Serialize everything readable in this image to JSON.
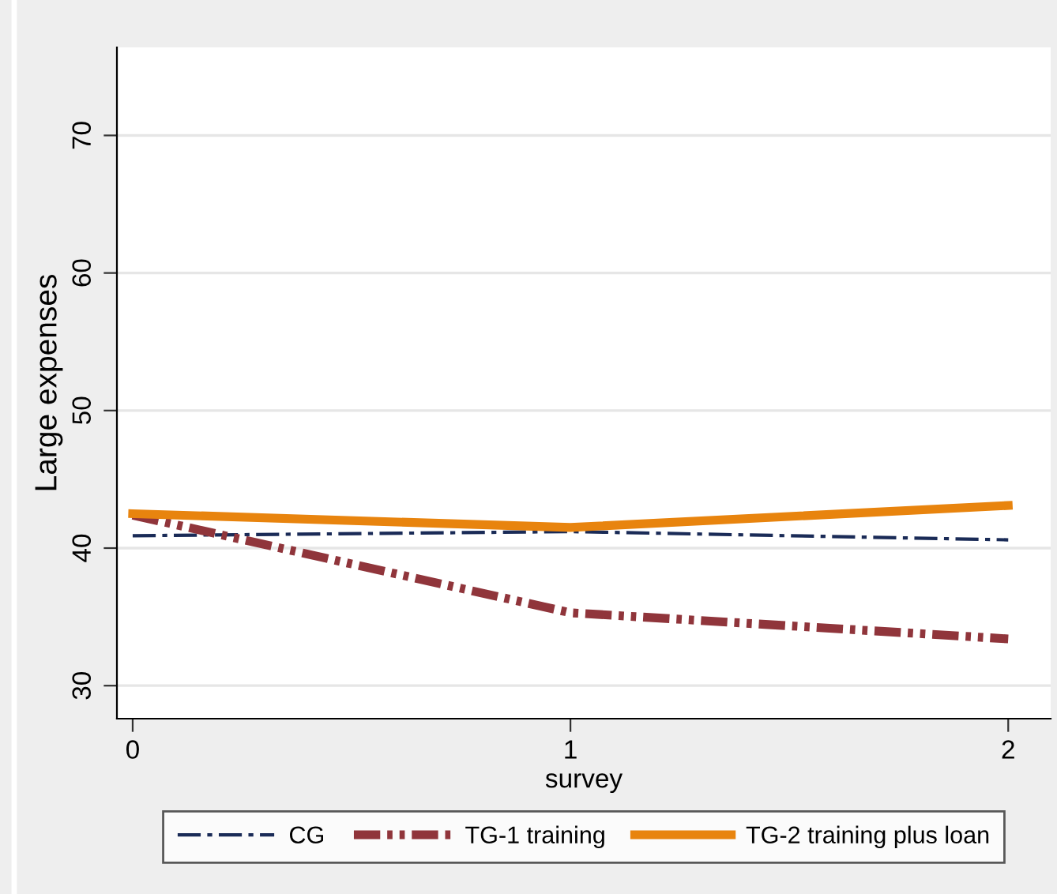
{
  "chart_data": {
    "type": "line",
    "xlabel": "survey",
    "ylabel": "Large expenses",
    "x": [
      0,
      1,
      2
    ],
    "series": [
      {
        "name": "CG",
        "color": "#1a2b57",
        "values": [
          40.9,
          41.2,
          40.6
        ],
        "line_style": "dashed"
      },
      {
        "name": "TG-1 training",
        "color": "#90353b",
        "values": [
          42.4,
          35.3,
          33.4
        ],
        "line_style": "dotted"
      },
      {
        "name": "TG-2 training plus loan",
        "color": "#e8840e",
        "values": [
          42.5,
          41.5,
          43.1
        ],
        "line_style": "solid"
      }
    ],
    "xlim": [
      -0.036,
      2.097
    ],
    "ylim": [
      27.6,
      76.4
    ],
    "xticks": [
      0,
      1,
      2
    ],
    "yticks": [
      30,
      40,
      50,
      60,
      70
    ],
    "grid": "y",
    "legend": "bottom"
  }
}
